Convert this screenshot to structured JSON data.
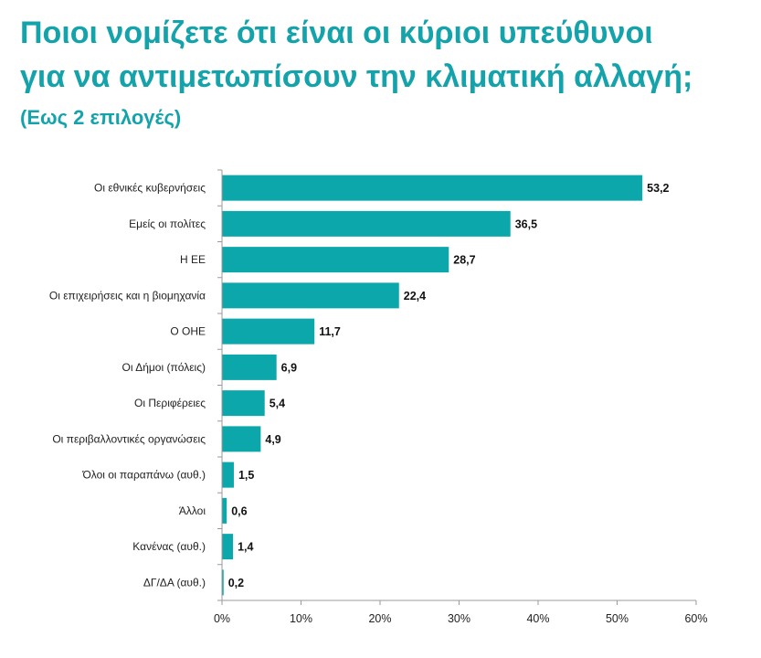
{
  "page": {
    "title_line1": "Ποιοι νομίζετε ότι είναι οι κύριοι υπεύθυνοι",
    "title_line2": "για να αντιμετωπίσουν την κλιματική αλλαγή;",
    "subtitle": "(Εως 2 επιλογές)"
  },
  "colors": {
    "accent": "#14a3ab",
    "bar": "#0ba7ab",
    "axis": "#9a9a9a"
  },
  "chart_data": {
    "type": "bar",
    "orientation": "horizontal",
    "title": "Ποιοι νομίζετε ότι είναι οι κύριοι υπεύθυνοι για να αντιμετωπίσουν την κλιματική αλλαγή;",
    "subtitle": "(Εως 2 επιλογές)",
    "categories": [
      "Οι εθνικές κυβερνήσεις",
      "Εμείς οι πολίτες",
      "Η ΕΕ",
      "Οι επιχειρήσεις και η βιομηχανία",
      "Ο ΟΗΕ",
      "Οι Δήμοι (πόλεις)",
      "Οι Περιφέρειες",
      "Οι περιβαλλοντικές οργανώσεις",
      "Όλοι οι παραπάνω (αυθ.)",
      "Άλλοι",
      "Κανένας (αυθ.)",
      "ΔΓ/ΔΑ (αυθ.)"
    ],
    "values": [
      53.2,
      36.5,
      28.7,
      22.4,
      11.7,
      6.9,
      5.4,
      4.9,
      1.5,
      0.6,
      1.4,
      0.2
    ],
    "value_labels": [
      "53,2",
      "36,5",
      "28,7",
      "22,4",
      "11,7",
      "6,9",
      "5,4",
      "4,9",
      "1,5",
      "0,6",
      "1,4",
      "0,2"
    ],
    "xlim": [
      0,
      60
    ],
    "xticks": [
      0,
      10,
      20,
      30,
      40,
      50,
      60
    ],
    "xtick_labels": [
      "0%",
      "10%",
      "20%",
      "30%",
      "40%",
      "50%",
      "60%"
    ],
    "grid": false,
    "legend": "none"
  }
}
